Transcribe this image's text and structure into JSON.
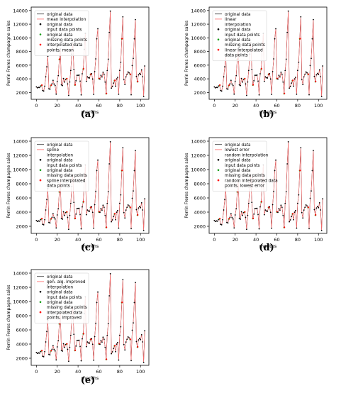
{
  "chart_data": [
    {
      "type": "line",
      "panel_label": "(a)",
      "xlabel": "months",
      "ylabel": "Perrin Freres champagne sales",
      "xlim": [
        -5,
        108
      ],
      "ylim": [
        1000,
        14500
      ],
      "xticks": [
        "0",
        "20",
        "40",
        "60",
        "80",
        "100"
      ],
      "yticks": [
        "2000",
        "4000",
        "6000",
        "8000",
        "10000",
        "12000",
        "14000"
      ],
      "legend": [
        "original data",
        "mean interpolation",
        "original data input data points",
        "original data missing data points",
        "interpolated data points, mean"
      ],
      "legend_position": "top-left"
    },
    {
      "type": "line",
      "panel_label": "(b)",
      "xlabel": "months",
      "ylabel": "Perrin Freres champagne sales",
      "xlim": [
        -5,
        108
      ],
      "ylim": [
        1000,
        14500
      ],
      "xticks": [
        "0",
        "20",
        "40",
        "60",
        "80",
        "100"
      ],
      "yticks": [
        "2000",
        "4000",
        "6000",
        "8000",
        "10000",
        "12000",
        "14000"
      ],
      "legend": [
        "original data",
        "linear interpolation",
        "original data input data points",
        "original data missing data points",
        "linear interpolated data points"
      ],
      "legend_position": "top-left"
    },
    {
      "type": "line",
      "panel_label": "(c)",
      "xlabel": "months",
      "ylabel": "Perrin Freres champagne sales",
      "xlim": [
        -5,
        108
      ],
      "ylim": [
        1000,
        14500
      ],
      "xticks": [
        "0",
        "20",
        "40",
        "60",
        "80",
        "100"
      ],
      "yticks": [
        "2000",
        "4000",
        "6000",
        "8000",
        "10000",
        "12000",
        "14000"
      ],
      "legend": [
        "original data",
        "spline interpolation",
        "original data input data points",
        "original data missing data points",
        "spline interpolated data points"
      ],
      "legend_position": "top-left"
    },
    {
      "type": "line",
      "panel_label": "(d)",
      "xlabel": "months",
      "ylabel": "Perrin Freres champagne sales",
      "xlim": [
        -5,
        108
      ],
      "ylim": [
        1000,
        14500
      ],
      "xticks": [
        "0",
        "20",
        "40",
        "60",
        "80",
        "100"
      ],
      "yticks": [
        "2000",
        "4000",
        "6000",
        "8000",
        "10000",
        "12000",
        "14000"
      ],
      "legend": [
        "original data",
        "lowest error random interpolation",
        "original data input data points",
        "original data missing data points",
        "random interpolated data points, lowest error"
      ],
      "legend_position": "top-left"
    },
    {
      "type": "line",
      "panel_label": "(e)",
      "xlabel": "months",
      "ylabel": "Perrin Freres champagne sales",
      "xlim": [
        -5,
        108
      ],
      "ylim": [
        1000,
        14500
      ],
      "xticks": [
        "0",
        "20",
        "40",
        "60",
        "80",
        "100"
      ],
      "yticks": [
        "2000",
        "4000",
        "6000",
        "8000",
        "10000",
        "12000",
        "14000"
      ],
      "legend": [
        "original data",
        "gen. alg. improved interpolation",
        "original data input data points",
        "original data missing data points",
        "interpolated data points, improved"
      ],
      "legend_position": "top-left"
    }
  ],
  "series_data": {
    "x_start": 0,
    "original_data": [
      2815,
      2672,
      2755,
      2721,
      2946,
      3036,
      2282,
      2212,
      2922,
      4301,
      5764,
      7312,
      2541,
      2475,
      3031,
      3266,
      3776,
      3230,
      3028,
      1759,
      3595,
      4474,
      6838,
      8357,
      3113,
      3006,
      4047,
      3523,
      3937,
      3986,
      3260,
      1573,
      3528,
      5211,
      7614,
      9254,
      5375,
      3088,
      3718,
      4514,
      4520,
      4539,
      3663,
      1643,
      4739,
      5428,
      8314,
      10651,
      3633,
      4292,
      4154,
      4121,
      4647,
      4753,
      3965,
      1723,
      5048,
      6922,
      9858,
      11331,
      4016,
      3957,
      4510,
      4276,
      4968,
      4677,
      3523,
      1821,
      5222,
      6872,
      10803,
      13916,
      2639,
      2899,
      3370,
      3740,
      2927,
      3986,
      4217,
      1738,
      5221,
      6424,
      9842,
      13076,
      3934,
      3162,
      4286,
      4676,
      5010,
      4874,
      4633,
      1659,
      5951,
      6981,
      9851,
      12670,
      4348,
      3564,
      4577,
      4788,
      4618,
      5312,
      4298,
      1413,
      5877
    ],
    "missing_indices": [
      5,
      14,
      22,
      29,
      37,
      45,
      52,
      60,
      67,
      75,
      82,
      90,
      97
    ],
    "interp_offsets": [
      [
        0.0,
        0.0,
        0.0,
        0.0,
        0.0,
        0.0,
        0.0,
        0.0,
        0.0,
        0.0,
        0.0,
        0.0,
        0.0
      ],
      [
        0.0,
        0.0,
        0.0,
        0.0,
        0.0,
        0.0,
        0.0,
        0.0,
        0.0,
        0.0,
        0.0,
        0.0,
        0.0
      ],
      [
        0.0,
        0.0,
        0.0,
        0.0,
        0.0,
        0.0,
        0.0,
        0.0,
        0.0,
        0.0,
        0.0,
        0.0,
        0.0
      ],
      [
        0.0,
        0.0,
        0.0,
        0.0,
        0.0,
        0.0,
        0.0,
        0.0,
        0.0,
        0.0,
        0.0,
        0.0,
        0.0
      ],
      [
        0.0,
        0.0,
        0.0,
        0.0,
        0.0,
        0.0,
        0.0,
        0.0,
        0.0,
        0.0,
        0.0,
        0.0,
        0.0
      ]
    ]
  },
  "colors": {
    "original_line": "#333333",
    "interp_line": "#ff6a6a",
    "input_points": "#000000",
    "missing_points": "#1a9e1a",
    "interp_points": "#ff0000"
  }
}
